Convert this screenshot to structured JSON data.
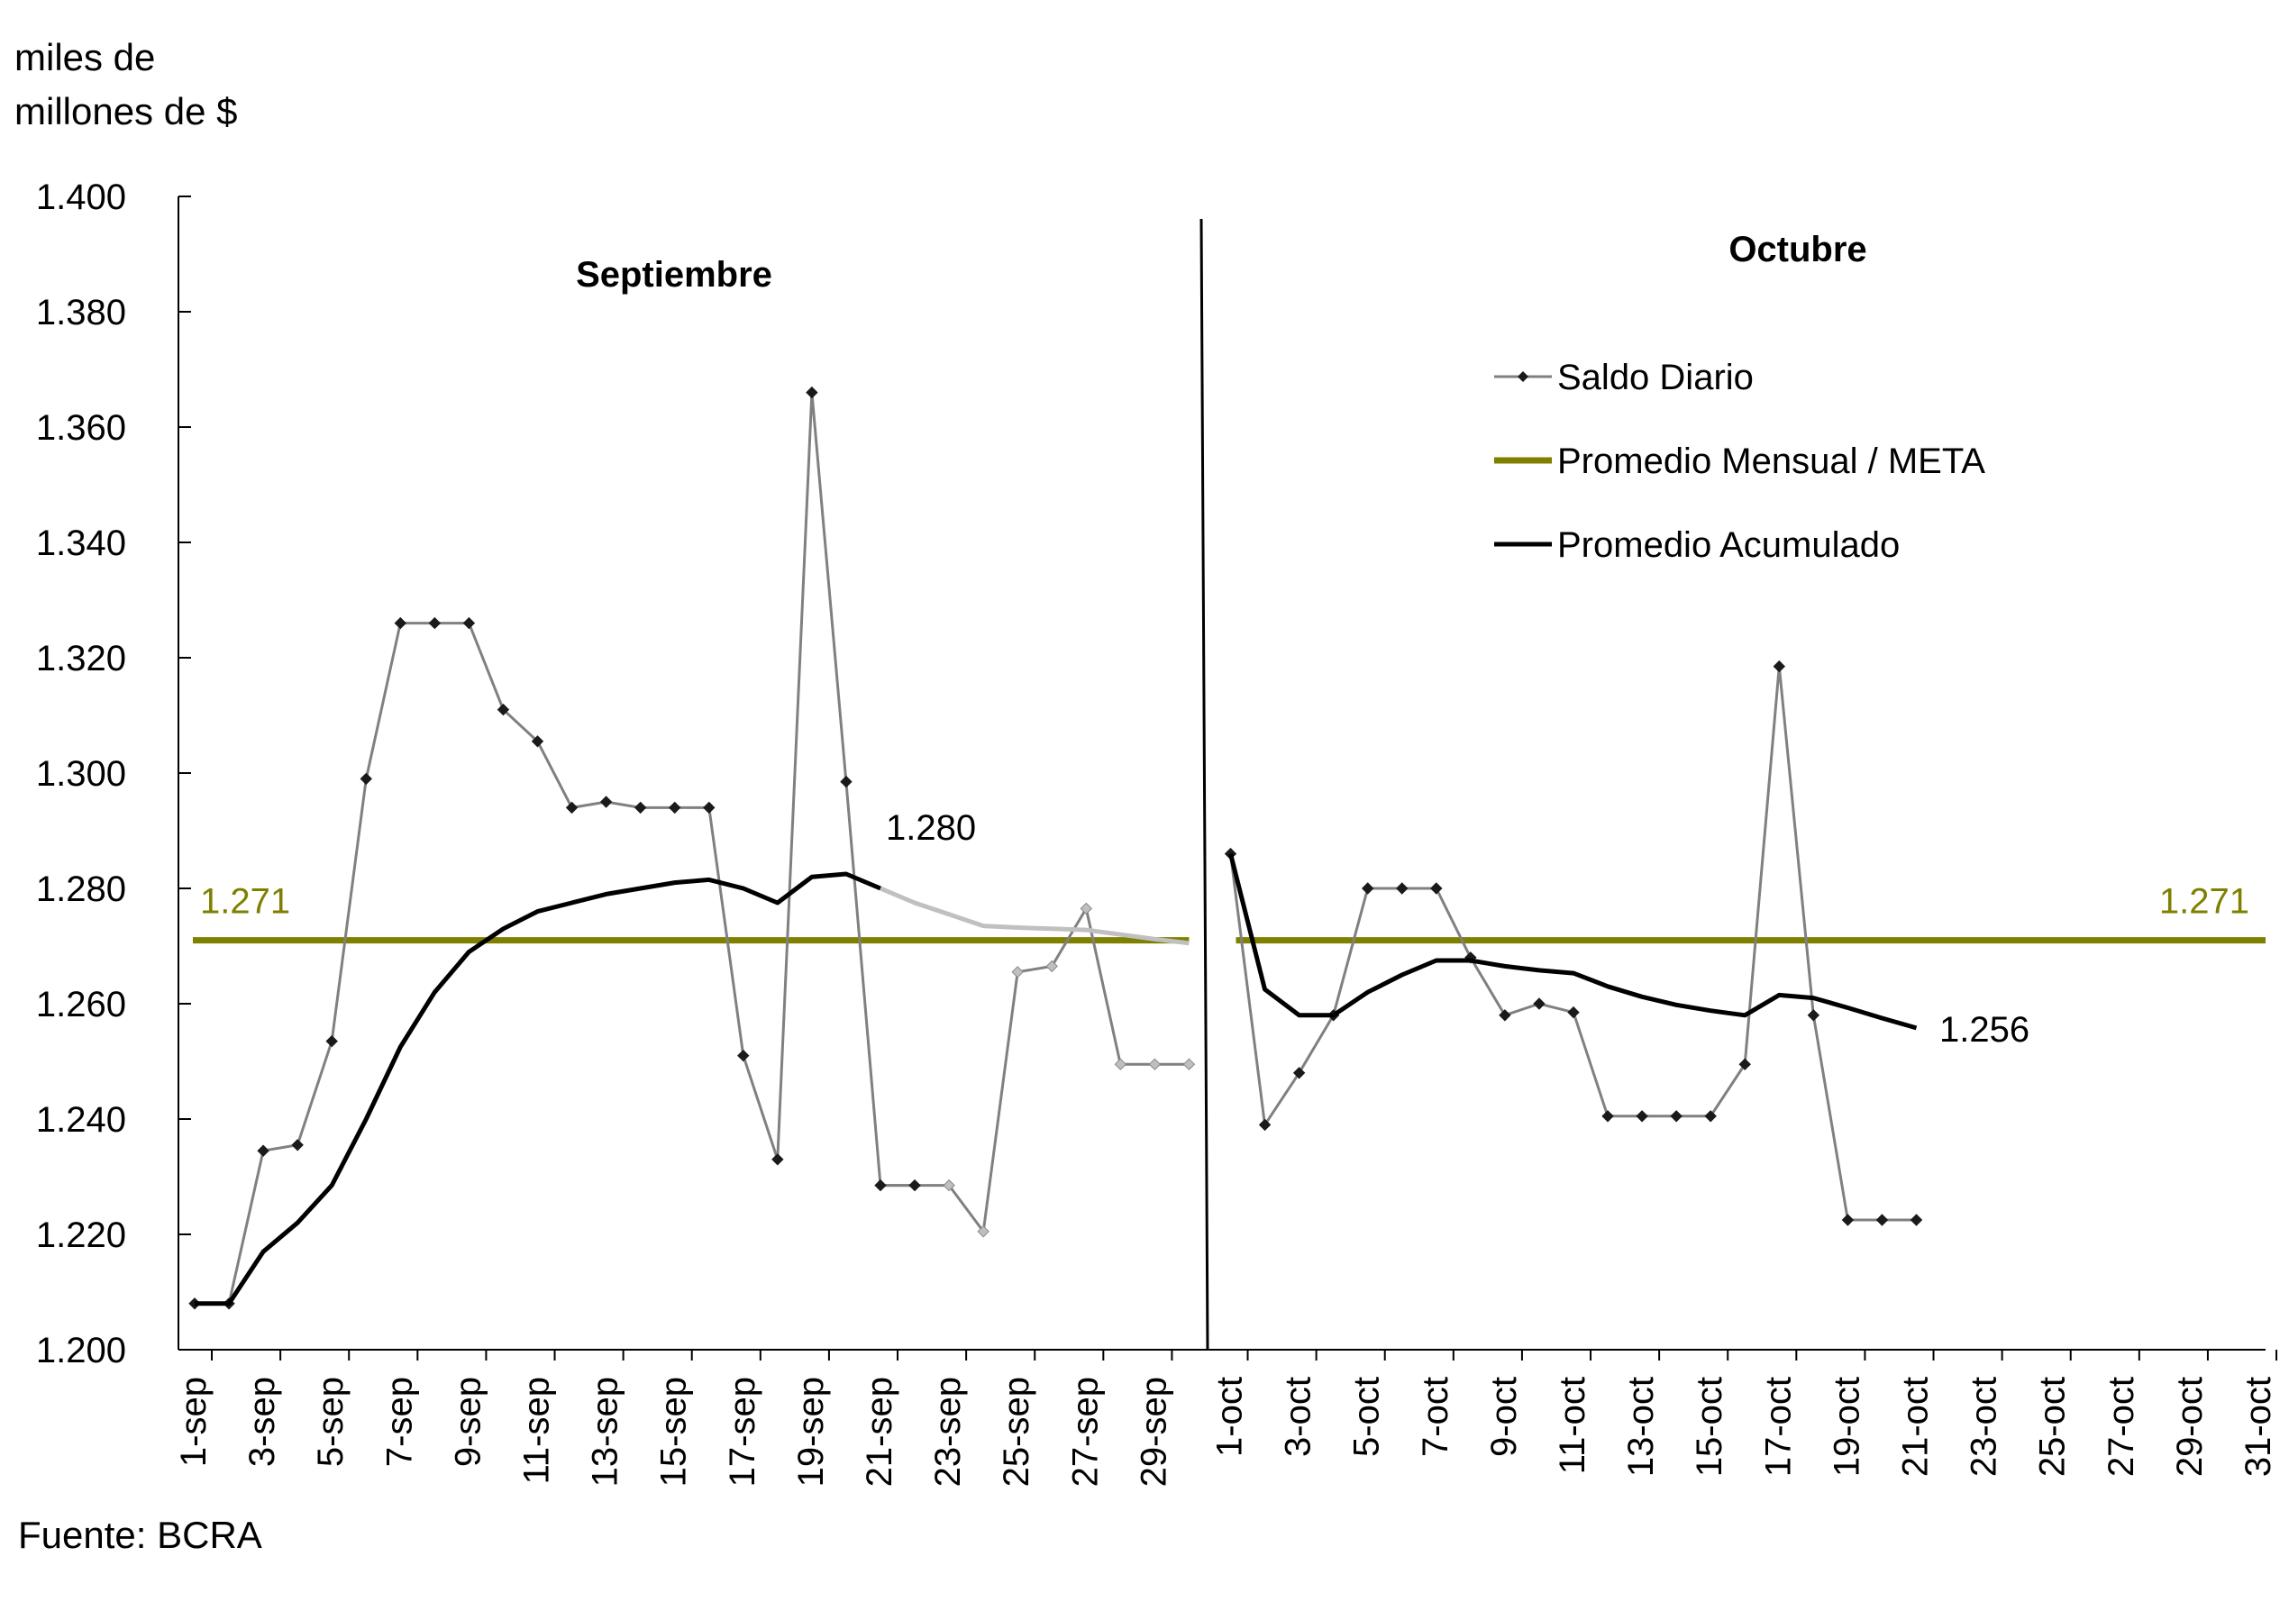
{
  "chart_data": {
    "type": "line",
    "unit_label_line1": "miles de",
    "unit_label_line2": "millones de $",
    "source": "Fuente: BCRA",
    "ylim": [
      1200,
      1400
    ],
    "y_ticks": [
      "1.200",
      "1.220",
      "1.240",
      "1.260",
      "1.280",
      "1.300",
      "1.320",
      "1.340",
      "1.360",
      "1.380",
      "1.400"
    ],
    "grid": false,
    "legend_position": "top-right",
    "panels": [
      {
        "title": "Septiembre",
        "x_labels": [
          "1-sep",
          "3-sep",
          "5-sep",
          "7-sep",
          "9-sep",
          "11-sep",
          "13-sep",
          "15-sep",
          "17-sep",
          "19-sep",
          "21-sep",
          "23-sep",
          "25-sep",
          "27-sep",
          "29-sep"
        ],
        "days": 30,
        "target_label": "1.271",
        "end_label": "1.280",
        "series": [
          {
            "name": "Saldo Diario",
            "color": "#808080",
            "projected_from_day": 22,
            "projected_color": "#bfbfbf",
            "values": [
              1208,
              1208,
              1234.5,
              1235.5,
              1253.5,
              1299,
              1326,
              1326,
              1326,
              1311,
              1305.5,
              1294,
              1295,
              1294,
              1294,
              1294,
              1251,
              1233,
              1366,
              1298.5,
              1228.5,
              1228.5,
              1228.5,
              1220.5,
              1265.5,
              1266.5,
              1276.5,
              1249.5,
              1249.5,
              1249.5
            ]
          },
          {
            "name": "Promedio Mensual / META",
            "color": "#7f7f00",
            "values": [
              1271,
              1271
            ]
          },
          {
            "name": "Promedio Acumulado",
            "color": "#000000",
            "projected_from_day": 21,
            "projected_color": "#c0c0c0",
            "values": [
              1208,
              1208,
              1217,
              1222,
              1228.5,
              1240,
              1252.5,
              1262,
              1269,
              1273,
              1276,
              1277.5,
              1279,
              1280,
              1281,
              1281.5,
              1280,
              1277.5,
              1282,
              1282.5,
              1280,
              1277.5,
              1275.5,
              1273.5,
              1273.2,
              1273,
              1272.8,
              1272,
              1271.2,
              1270.5
            ]
          }
        ]
      },
      {
        "title": "Octubre",
        "x_labels": [
          "1-oct",
          "3-oct",
          "5-oct",
          "7-oct",
          "9-oct",
          "11-oct",
          "13-oct",
          "15-oct",
          "17-oct",
          "19-oct",
          "21-oct",
          "23-oct",
          "25-oct",
          "27-oct",
          "29-oct",
          "31-oct"
        ],
        "days": 31,
        "target_label": "1.271",
        "end_label": "1.256",
        "series": [
          {
            "name": "Saldo Diario",
            "color": "#808080",
            "values": [
              1286,
              1239,
              1248,
              1258,
              1280,
              1280,
              1280,
              1268,
              1258,
              1260,
              1258.5,
              1240.5,
              1240.5,
              1240.5,
              1240.5,
              1249.5,
              1318.5,
              1258,
              1222.5,
              1222.5,
              1222.5
            ]
          },
          {
            "name": "Promedio Mensual / META",
            "color": "#7f7f00",
            "values": [
              1271,
              1271
            ]
          },
          {
            "name": "Promedio Acumulado",
            "color": "#000000",
            "values": [
              1286,
              1262.5,
              1258,
              1258,
              1262,
              1265,
              1267.5,
              1267.5,
              1266.5,
              1265.8,
              1265.3,
              1263,
              1261.2,
              1259.8,
              1258.8,
              1258,
              1261.5,
              1261,
              1259.3,
              1257.5,
              1255.8
            ]
          }
        ]
      }
    ],
    "legend": [
      {
        "label": "Saldo Diario",
        "color": "#808080",
        "marker": "diamond"
      },
      {
        "label": "Promedio Mensual / META",
        "color": "#7f7f00",
        "marker": "none"
      },
      {
        "label": "Promedio Acumulado",
        "color": "#000000",
        "marker": "none"
      }
    ]
  }
}
